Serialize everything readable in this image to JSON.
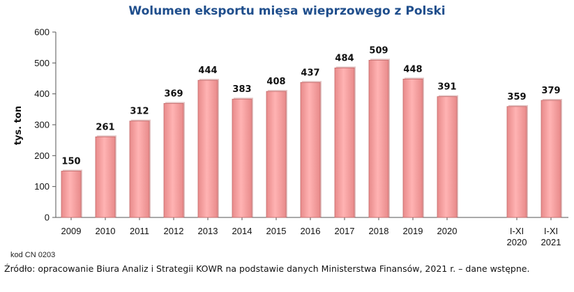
{
  "chart_data": {
    "type": "bar",
    "title": "Wolumen eksportu mięsa wieprzowego z Polski",
    "ylabel": "tys. ton",
    "xlabel": "",
    "ylim": [
      0,
      600
    ],
    "yticks": [
      0,
      100,
      200,
      300,
      400,
      500,
      600
    ],
    "grid": false,
    "categories": [
      [
        "2009"
      ],
      [
        "2010"
      ],
      [
        "2011"
      ],
      [
        "2012"
      ],
      [
        "2013"
      ],
      [
        "2014"
      ],
      [
        "2015"
      ],
      [
        "2016"
      ],
      [
        "2017"
      ],
      [
        "2018"
      ],
      [
        "2019"
      ],
      [
        "2020"
      ],
      [
        "I-XI",
        "2020"
      ],
      [
        "I-XI",
        "2021"
      ]
    ],
    "values": [
      150,
      261,
      312,
      369,
      444,
      383,
      408,
      437,
      484,
      509,
      448,
      391,
      359,
      379
    ],
    "bar_color": "#f4a0a0",
    "bar_edge": "#c46a6a"
  },
  "note": "kod CN 0203",
  "source": "Źródło: opracowanie Biura Analiz i Strategii KOWR na podstawie danych Ministerstwa Finansów, 2021 r. – dane wstępne."
}
